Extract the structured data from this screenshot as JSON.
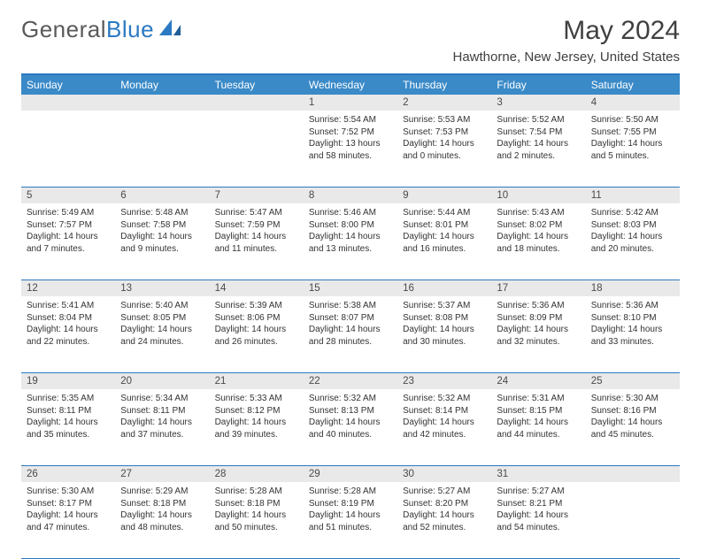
{
  "brand": {
    "name_a": "General",
    "name_b": "Blue"
  },
  "title": "May 2024",
  "location": "Hawthorne, New Jersey, United States",
  "colors": {
    "header_bar": "#3a8ac8",
    "rule": "#2b79c2",
    "daynum_bg": "#e9e9e9",
    "text": "#333333",
    "title_text": "#404040"
  },
  "dow": [
    "Sunday",
    "Monday",
    "Tuesday",
    "Wednesday",
    "Thursday",
    "Friday",
    "Saturday"
  ],
  "weeks": [
    [
      {
        "n": "",
        "lines": [
          "",
          "",
          "",
          ""
        ]
      },
      {
        "n": "",
        "lines": [
          "",
          "",
          "",
          ""
        ]
      },
      {
        "n": "",
        "lines": [
          "",
          "",
          "",
          ""
        ]
      },
      {
        "n": "1",
        "lines": [
          "Sunrise: 5:54 AM",
          "Sunset: 7:52 PM",
          "Daylight: 13 hours",
          "and 58 minutes."
        ]
      },
      {
        "n": "2",
        "lines": [
          "Sunrise: 5:53 AM",
          "Sunset: 7:53 PM",
          "Daylight: 14 hours",
          "and 0 minutes."
        ]
      },
      {
        "n": "3",
        "lines": [
          "Sunrise: 5:52 AM",
          "Sunset: 7:54 PM",
          "Daylight: 14 hours",
          "and 2 minutes."
        ]
      },
      {
        "n": "4",
        "lines": [
          "Sunrise: 5:50 AM",
          "Sunset: 7:55 PM",
          "Daylight: 14 hours",
          "and 5 minutes."
        ]
      }
    ],
    [
      {
        "n": "5",
        "lines": [
          "Sunrise: 5:49 AM",
          "Sunset: 7:57 PM",
          "Daylight: 14 hours",
          "and 7 minutes."
        ]
      },
      {
        "n": "6",
        "lines": [
          "Sunrise: 5:48 AM",
          "Sunset: 7:58 PM",
          "Daylight: 14 hours",
          "and 9 minutes."
        ]
      },
      {
        "n": "7",
        "lines": [
          "Sunrise: 5:47 AM",
          "Sunset: 7:59 PM",
          "Daylight: 14 hours",
          "and 11 minutes."
        ]
      },
      {
        "n": "8",
        "lines": [
          "Sunrise: 5:46 AM",
          "Sunset: 8:00 PM",
          "Daylight: 14 hours",
          "and 13 minutes."
        ]
      },
      {
        "n": "9",
        "lines": [
          "Sunrise: 5:44 AM",
          "Sunset: 8:01 PM",
          "Daylight: 14 hours",
          "and 16 minutes."
        ]
      },
      {
        "n": "10",
        "lines": [
          "Sunrise: 5:43 AM",
          "Sunset: 8:02 PM",
          "Daylight: 14 hours",
          "and 18 minutes."
        ]
      },
      {
        "n": "11",
        "lines": [
          "Sunrise: 5:42 AM",
          "Sunset: 8:03 PM",
          "Daylight: 14 hours",
          "and 20 minutes."
        ]
      }
    ],
    [
      {
        "n": "12",
        "lines": [
          "Sunrise: 5:41 AM",
          "Sunset: 8:04 PM",
          "Daylight: 14 hours",
          "and 22 minutes."
        ]
      },
      {
        "n": "13",
        "lines": [
          "Sunrise: 5:40 AM",
          "Sunset: 8:05 PM",
          "Daylight: 14 hours",
          "and 24 minutes."
        ]
      },
      {
        "n": "14",
        "lines": [
          "Sunrise: 5:39 AM",
          "Sunset: 8:06 PM",
          "Daylight: 14 hours",
          "and 26 minutes."
        ]
      },
      {
        "n": "15",
        "lines": [
          "Sunrise: 5:38 AM",
          "Sunset: 8:07 PM",
          "Daylight: 14 hours",
          "and 28 minutes."
        ]
      },
      {
        "n": "16",
        "lines": [
          "Sunrise: 5:37 AM",
          "Sunset: 8:08 PM",
          "Daylight: 14 hours",
          "and 30 minutes."
        ]
      },
      {
        "n": "17",
        "lines": [
          "Sunrise: 5:36 AM",
          "Sunset: 8:09 PM",
          "Daylight: 14 hours",
          "and 32 minutes."
        ]
      },
      {
        "n": "18",
        "lines": [
          "Sunrise: 5:36 AM",
          "Sunset: 8:10 PM",
          "Daylight: 14 hours",
          "and 33 minutes."
        ]
      }
    ],
    [
      {
        "n": "19",
        "lines": [
          "Sunrise: 5:35 AM",
          "Sunset: 8:11 PM",
          "Daylight: 14 hours",
          "and 35 minutes."
        ]
      },
      {
        "n": "20",
        "lines": [
          "Sunrise: 5:34 AM",
          "Sunset: 8:11 PM",
          "Daylight: 14 hours",
          "and 37 minutes."
        ]
      },
      {
        "n": "21",
        "lines": [
          "Sunrise: 5:33 AM",
          "Sunset: 8:12 PM",
          "Daylight: 14 hours",
          "and 39 minutes."
        ]
      },
      {
        "n": "22",
        "lines": [
          "Sunrise: 5:32 AM",
          "Sunset: 8:13 PM",
          "Daylight: 14 hours",
          "and 40 minutes."
        ]
      },
      {
        "n": "23",
        "lines": [
          "Sunrise: 5:32 AM",
          "Sunset: 8:14 PM",
          "Daylight: 14 hours",
          "and 42 minutes."
        ]
      },
      {
        "n": "24",
        "lines": [
          "Sunrise: 5:31 AM",
          "Sunset: 8:15 PM",
          "Daylight: 14 hours",
          "and 44 minutes."
        ]
      },
      {
        "n": "25",
        "lines": [
          "Sunrise: 5:30 AM",
          "Sunset: 8:16 PM",
          "Daylight: 14 hours",
          "and 45 minutes."
        ]
      }
    ],
    [
      {
        "n": "26",
        "lines": [
          "Sunrise: 5:30 AM",
          "Sunset: 8:17 PM",
          "Daylight: 14 hours",
          "and 47 minutes."
        ]
      },
      {
        "n": "27",
        "lines": [
          "Sunrise: 5:29 AM",
          "Sunset: 8:18 PM",
          "Daylight: 14 hours",
          "and 48 minutes."
        ]
      },
      {
        "n": "28",
        "lines": [
          "Sunrise: 5:28 AM",
          "Sunset: 8:18 PM",
          "Daylight: 14 hours",
          "and 50 minutes."
        ]
      },
      {
        "n": "29",
        "lines": [
          "Sunrise: 5:28 AM",
          "Sunset: 8:19 PM",
          "Daylight: 14 hours",
          "and 51 minutes."
        ]
      },
      {
        "n": "30",
        "lines": [
          "Sunrise: 5:27 AM",
          "Sunset: 8:20 PM",
          "Daylight: 14 hours",
          "and 52 minutes."
        ]
      },
      {
        "n": "31",
        "lines": [
          "Sunrise: 5:27 AM",
          "Sunset: 8:21 PM",
          "Daylight: 14 hours",
          "and 54 minutes."
        ]
      },
      {
        "n": "",
        "lines": [
          "",
          "",
          "",
          ""
        ]
      }
    ]
  ]
}
